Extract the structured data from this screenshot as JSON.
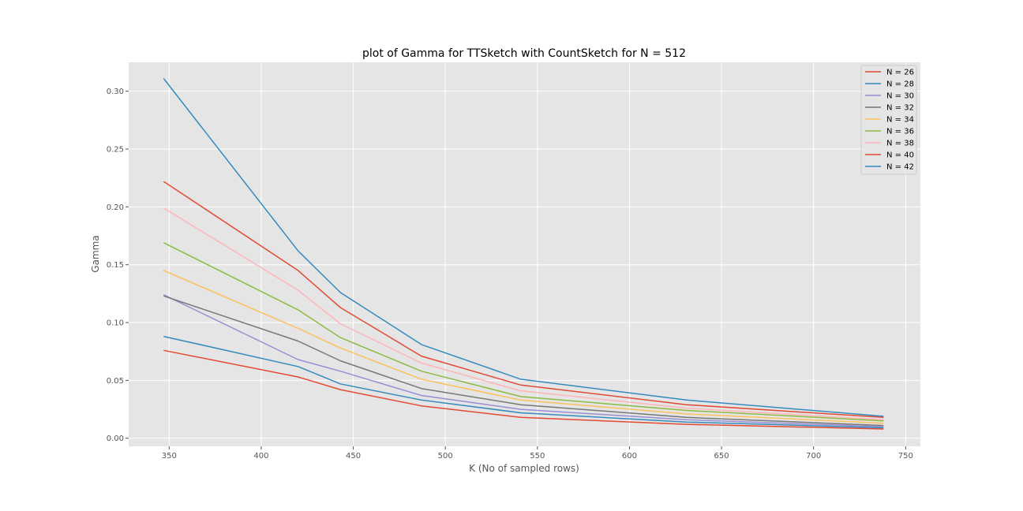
{
  "chart_data": {
    "type": "line",
    "title": "plot of Gamma for TTSketch with CountSketch for N = 512",
    "xlabel": "K (No of sampled rows)",
    "ylabel": "Gamma",
    "xlim": [
      328,
      758
    ],
    "ylim": [
      -0.007,
      0.325
    ],
    "xticks": [
      350,
      400,
      450,
      500,
      550,
      600,
      650,
      700,
      750
    ],
    "xtick_labels": [
      "350",
      "400",
      "450",
      "500",
      "550",
      "600",
      "650",
      "700",
      "750"
    ],
    "yticks": [
      0.0,
      0.05,
      0.1,
      0.15,
      0.2,
      0.25,
      0.3
    ],
    "ytick_labels": [
      "0.00",
      "0.05",
      "0.10",
      "0.15",
      "0.20",
      "0.25",
      "0.30"
    ],
    "grid": true,
    "legend_position": "top-right",
    "x": [
      347,
      420,
      443,
      487,
      541,
      631,
      738
    ],
    "series": [
      {
        "name": "N = 26",
        "color": "#E24A33",
        "values": [
          0.076,
          0.053,
          0.042,
          0.028,
          0.018,
          0.012,
          0.008
        ]
      },
      {
        "name": "N = 28",
        "color": "#348ABD",
        "values": [
          0.088,
          0.062,
          0.047,
          0.033,
          0.022,
          0.014,
          0.009
        ]
      },
      {
        "name": "N = 30",
        "color": "#988ED5",
        "values": [
          0.124,
          0.068,
          0.058,
          0.037,
          0.025,
          0.016,
          0.01
        ]
      },
      {
        "name": "N = 32",
        "color": "#777777",
        "values": [
          0.123,
          0.084,
          0.067,
          0.043,
          0.029,
          0.018,
          0.011
        ]
      },
      {
        "name": "N = 34",
        "color": "#FBC15E",
        "values": [
          0.145,
          0.095,
          0.078,
          0.051,
          0.033,
          0.021,
          0.013
        ]
      },
      {
        "name": "N = 36",
        "color": "#8EBA42",
        "values": [
          0.169,
          0.111,
          0.087,
          0.058,
          0.036,
          0.024,
          0.015
        ]
      },
      {
        "name": "N = 38",
        "color": "#FFB5B8",
        "values": [
          0.199,
          0.128,
          0.099,
          0.065,
          0.041,
          0.026,
          0.016
        ]
      },
      {
        "name": "N = 40",
        "color": "#E24A33",
        "values": [
          0.222,
          0.145,
          0.113,
          0.071,
          0.046,
          0.029,
          0.018
        ]
      },
      {
        "name": "N = 42",
        "color": "#348ABD",
        "values": [
          0.311,
          0.162,
          0.126,
          0.081,
          0.051,
          0.033,
          0.019
        ]
      }
    ]
  }
}
